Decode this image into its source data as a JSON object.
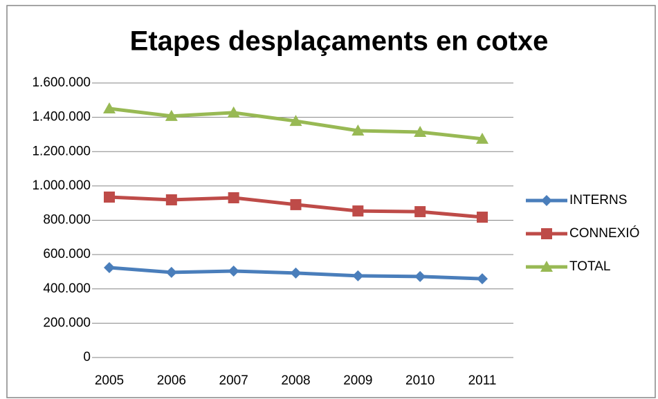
{
  "chart_data": {
    "type": "line",
    "title": "Etapes desplaçaments en cotxe",
    "categories": [
      "2005",
      "2006",
      "2007",
      "2008",
      "2009",
      "2010",
      "2011"
    ],
    "series": [
      {
        "name": "INTERNS",
        "color": "#4a7ebb",
        "marker": "diamond",
        "values": [
          524000,
          496000,
          504000,
          492000,
          476000,
          472000,
          459000
        ]
      },
      {
        "name": "CONNEXIÓ",
        "color": "#be4b48",
        "marker": "square",
        "values": [
          935000,
          919000,
          931000,
          891000,
          854000,
          850000,
          818000
        ]
      },
      {
        "name": "TOTAL",
        "color": "#98b954",
        "marker": "triangle",
        "values": [
          1451000,
          1407000,
          1427000,
          1378000,
          1322000,
          1314000,
          1274000
        ]
      }
    ],
    "ylim": [
      0,
      1600000
    ],
    "yticks": [
      0,
      {
        "value": 200000,
        "label": "200.000"
      },
      {
        "value": 400000,
        "label": "400.000"
      },
      {
        "value": 600000,
        "label": "600.000"
      },
      {
        "value": 800000,
        "label": "800.000"
      },
      {
        "value": 1000000,
        "label": "1.000.000"
      },
      {
        "value": 1200000,
        "label": "1.200.000"
      },
      {
        "value": 1400000,
        "label": "1.400.000"
      },
      {
        "value": 1600000,
        "label": "1.600.000"
      }
    ],
    "grid": true,
    "legend": "right"
  }
}
